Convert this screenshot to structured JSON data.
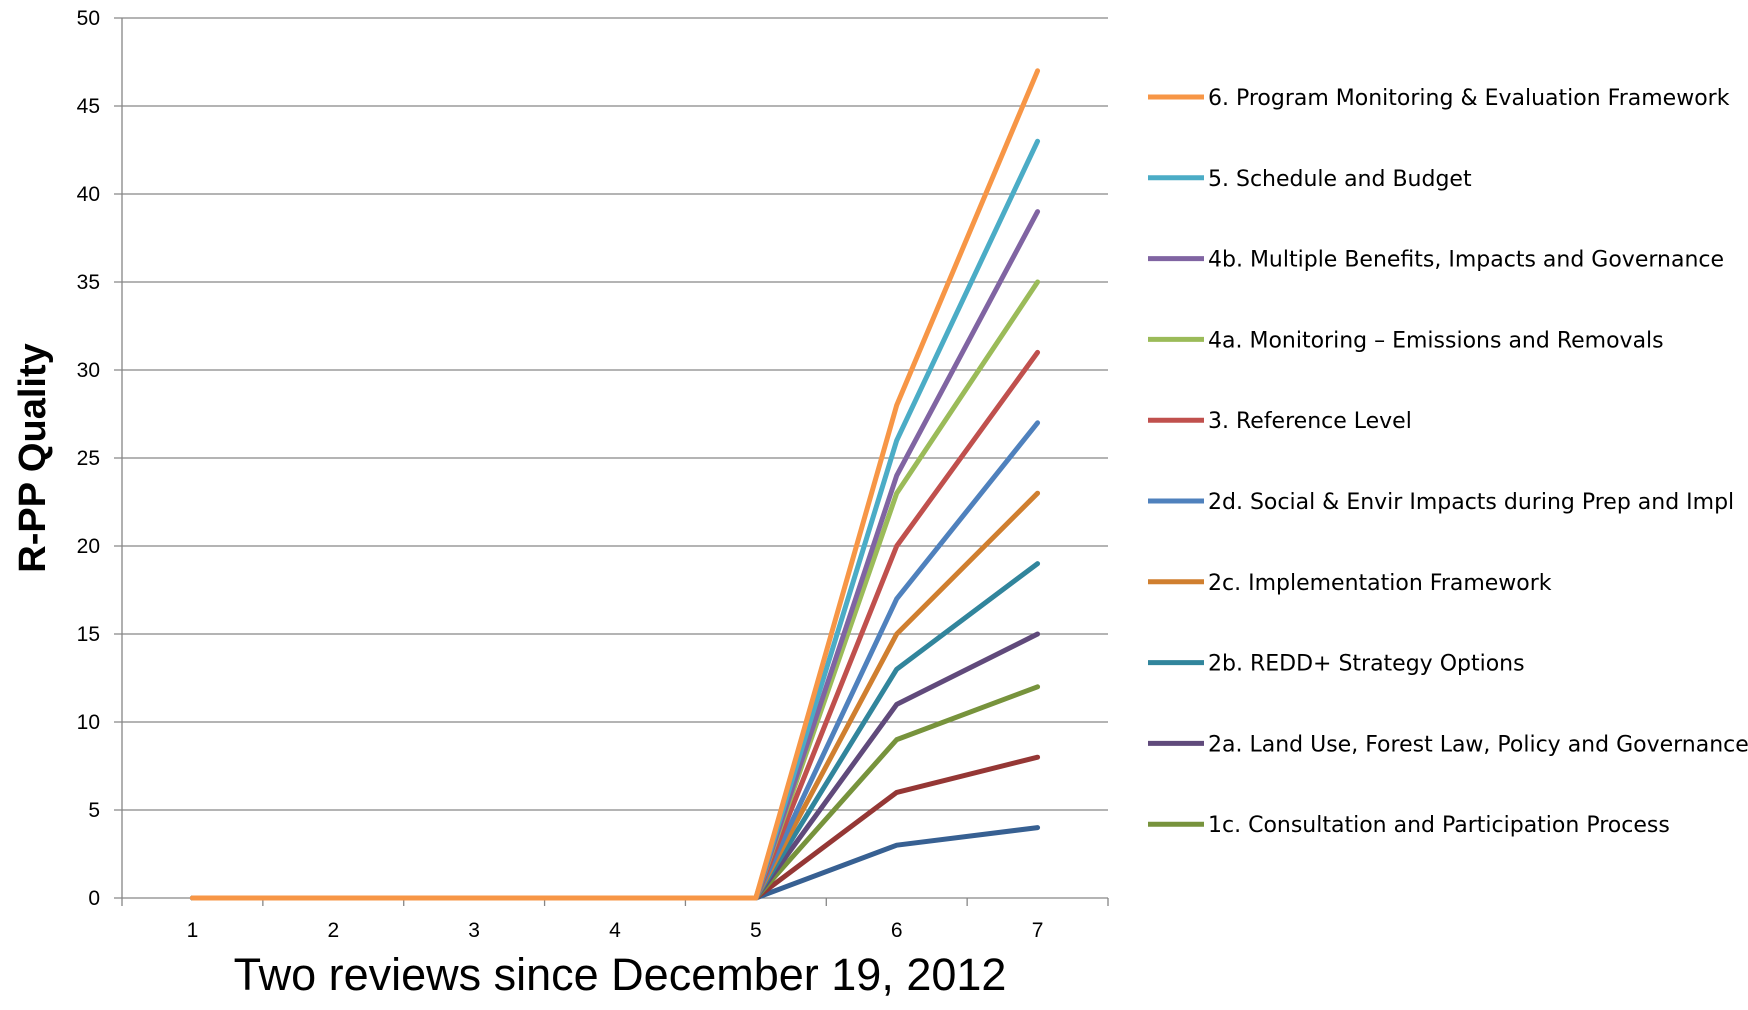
{
  "chart_data": {
    "type": "line",
    "xlabel": "Two reviews since December 19, 2012",
    "ylabel": "R-PP Quality",
    "x": [
      1,
      2,
      3,
      4,
      5,
      6,
      7
    ],
    "ylim": [
      0,
      50
    ],
    "yticks": [
      0,
      5,
      10,
      15,
      20,
      25,
      30,
      35,
      40,
      45,
      50
    ],
    "grid": true,
    "legend_position": "right",
    "series": [
      {
        "name": "6. Program Monitoring & Evaluation Framework",
        "color": "#f79646",
        "values": [
          0,
          0,
          0,
          0,
          0,
          28,
          47
        ]
      },
      {
        "name": "5. Schedule and Budget",
        "color": "#4bacc6",
        "values": [
          0,
          0,
          0,
          0,
          0,
          26,
          43
        ]
      },
      {
        "name": "4b. Multiple Benefits, Impacts and Governance",
        "color": "#8064a2",
        "values": [
          0,
          0,
          0,
          0,
          0,
          24,
          39
        ]
      },
      {
        "name": "4a. Monitoring – Emissions and Removals",
        "color": "#9bbb59",
        "values": [
          0,
          0,
          0,
          0,
          0,
          23,
          35
        ]
      },
      {
        "name": "3. Reference Level",
        "color": "#c0504d",
        "values": [
          0,
          0,
          0,
          0,
          0,
          20,
          31
        ]
      },
      {
        "name": "2d. Social & Envir Impacts during Prep and Impl",
        "color": "#4f81bd",
        "values": [
          0,
          0,
          0,
          0,
          0,
          17,
          27
        ]
      },
      {
        "name": "2c. Implementation Framework",
        "color": "#d07f2f",
        "values": [
          0,
          0,
          0,
          0,
          0,
          15,
          23
        ]
      },
      {
        "name": "2b. REDD+ Strategy Options",
        "color": "#31859c",
        "values": [
          0,
          0,
          0,
          0,
          0,
          13,
          19
        ]
      },
      {
        "name": "2a. Land Use, Forest Law, Policy and Governance",
        "color": "#604a7b",
        "values": [
          0,
          0,
          0,
          0,
          0,
          11,
          15
        ]
      },
      {
        "name": "1c. Consultation and Participation Process",
        "color": "#77933c",
        "values": [
          0,
          0,
          0,
          0,
          0,
          9,
          12
        ]
      },
      {
        "color": "#953735",
        "values": [
          0,
          0,
          0,
          0,
          0,
          6,
          8
        ]
      },
      {
        "color": "#376092",
        "values": [
          0,
          0,
          0,
          0,
          0,
          3,
          4
        ]
      }
    ]
  }
}
